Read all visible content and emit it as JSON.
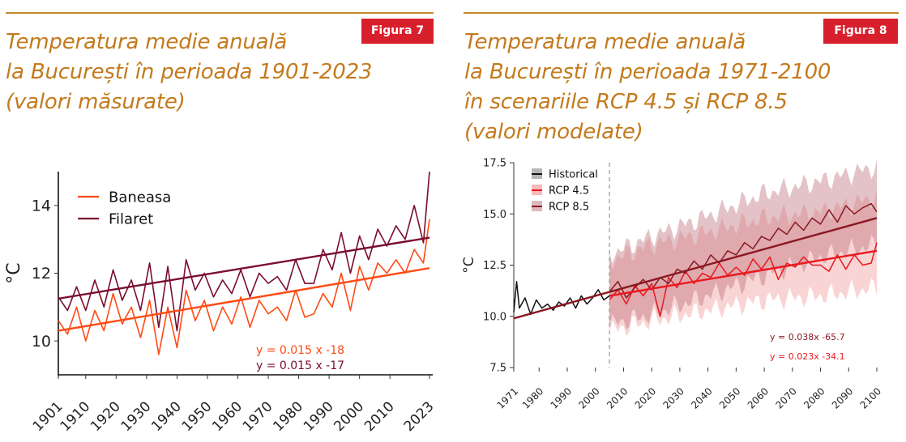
{
  "figure7": {
    "badge": "Figura 7",
    "title_lines": [
      "Temperatura medie anuală",
      "la București în perioada 1901-2023",
      "(valori măsurate)"
    ],
    "chart_data": {
      "type": "line",
      "ylabel": "°C",
      "xlim": [
        1901,
        2023
      ],
      "ylim": [
        9,
        15
      ],
      "x_ticks": [
        1901,
        1910,
        1920,
        1930,
        1940,
        1950,
        1960,
        1970,
        1980,
        1990,
        2000,
        2010,
        2023
      ],
      "y_ticks": [
        10,
        12,
        14
      ],
      "grid": false,
      "legend_position": "top-left",
      "series": [
        {
          "name": "Baneasa",
          "color": "#ff4a14",
          "x": [
            1901,
            1904,
            1907,
            1910,
            1913,
            1916,
            1919,
            1922,
            1925,
            1928,
            1931,
            1934,
            1937,
            1940,
            1943,
            1946,
            1949,
            1952,
            1955,
            1958,
            1961,
            1964,
            1967,
            1970,
            1973,
            1976,
            1979,
            1982,
            1985,
            1988,
            1991,
            1994,
            1997,
            2000,
            2003,
            2006,
            2009,
            2012,
            2015,
            2018,
            2021,
            2023
          ],
          "y": [
            10.6,
            10.2,
            11.0,
            10.0,
            10.9,
            10.3,
            11.4,
            10.5,
            11.0,
            10.1,
            11.2,
            9.6,
            11.0,
            9.8,
            11.5,
            10.6,
            11.2,
            10.3,
            11.0,
            10.5,
            11.3,
            10.4,
            11.2,
            10.8,
            11.0,
            10.6,
            11.5,
            10.7,
            10.8,
            11.4,
            11.0,
            12.0,
            10.9,
            12.2,
            11.5,
            12.3,
            12.0,
            12.4,
            12.0,
            12.7,
            12.3,
            13.6
          ]
        },
        {
          "name": "Filaret",
          "color": "#7a0c2e",
          "x": [
            1901,
            1904,
            1907,
            1910,
            1913,
            1916,
            1919,
            1922,
            1925,
            1928,
            1931,
            1934,
            1937,
            1940,
            1943,
            1946,
            1949,
            1952,
            1955,
            1958,
            1961,
            1964,
            1967,
            1970,
            1973,
            1976,
            1979,
            1982,
            1985,
            1988,
            1991,
            1994,
            1997,
            2000,
            2003,
            2006,
            2009,
            2012,
            2015,
            2018,
            2021,
            2023
          ],
          "y": [
            11.3,
            10.9,
            11.6,
            10.9,
            11.8,
            11.0,
            12.1,
            11.2,
            11.8,
            10.9,
            12.3,
            10.4,
            12.2,
            10.3,
            12.4,
            11.5,
            12.0,
            11.3,
            11.8,
            11.4,
            12.1,
            11.3,
            12.0,
            11.7,
            11.9,
            11.5,
            12.4,
            11.7,
            11.7,
            12.7,
            12.1,
            13.2,
            12.0,
            13.1,
            12.4,
            13.3,
            12.8,
            13.4,
            13.0,
            14.0,
            12.9,
            15.0
          ]
        }
      ],
      "trendlines": [
        {
          "series": "Baneasa",
          "equation": "y = 0.015 x -18",
          "x": [
            1901,
            2023
          ],
          "y": [
            10.3,
            12.15
          ],
          "color": "#ff4a14"
        },
        {
          "series": "Filaret",
          "equation": "y = 0.015 x -17",
          "x": [
            1901,
            2023
          ],
          "y": [
            11.25,
            13.05
          ],
          "color": "#7a0c2e"
        }
      ]
    }
  },
  "figure8": {
    "badge": "Figura 8",
    "title_lines": [
      "Temperatura medie anuală",
      "la București în perioada 1971-2100",
      "în scenariile RCP 4.5 și RCP 8.5",
      "(valori modelate)"
    ],
    "chart_data": {
      "type": "line",
      "ylabel": "°C",
      "xlim": [
        1971,
        2100
      ],
      "ylim": [
        7.5,
        17.5
      ],
      "x_ticks": [
        1971,
        1980,
        1990,
        2000,
        2010,
        2020,
        2030,
        2040,
        2050,
        2060,
        2070,
        2080,
        2090,
        2100
      ],
      "y_ticks": [
        7.5,
        10.0,
        12.5,
        15.0,
        17.5
      ],
      "grid": false,
      "legend_position": "top-left",
      "reference_line_x": 2005,
      "series": [
        {
          "name": "Historical",
          "color": "#111111",
          "x": [
            1971,
            1972,
            1973,
            1975,
            1977,
            1979,
            1981,
            1983,
            1985,
            1987,
            1989,
            1991,
            1993,
            1995,
            1997,
            1999,
            2001,
            2003,
            2005
          ],
          "y": [
            10.2,
            11.7,
            10.4,
            10.9,
            10.1,
            10.8,
            10.4,
            10.6,
            10.3,
            10.7,
            10.5,
            10.9,
            10.4,
            11.0,
            10.6,
            10.9,
            11.3,
            10.8,
            11.0
          ]
        },
        {
          "name": "RCP 4.5",
          "color": "#e8191f",
          "x": [
            2005,
            2008,
            2011,
            2014,
            2017,
            2020,
            2023,
            2026,
            2029,
            2032,
            2035,
            2038,
            2041,
            2044,
            2047,
            2050,
            2053,
            2056,
            2059,
            2062,
            2065,
            2068,
            2071,
            2074,
            2077,
            2080,
            2083,
            2086,
            2089,
            2092,
            2095,
            2098,
            2100
          ],
          "y": [
            10.8,
            11.3,
            10.6,
            11.5,
            11.0,
            11.6,
            10.0,
            11.9,
            11.4,
            12.2,
            11.6,
            12.1,
            11.9,
            12.6,
            12.0,
            12.4,
            12.0,
            12.8,
            12.3,
            12.9,
            11.8,
            12.6,
            12.4,
            12.9,
            12.5,
            12.5,
            12.2,
            13.0,
            12.3,
            13.0,
            12.5,
            12.6,
            13.6
          ]
        },
        {
          "name": "RCP 8.5",
          "color": "#8a1822",
          "x": [
            2005,
            2008,
            2011,
            2014,
            2017,
            2020,
            2023,
            2026,
            2029,
            2032,
            2035,
            2038,
            2041,
            2044,
            2047,
            2050,
            2053,
            2056,
            2059,
            2062,
            2065,
            2068,
            2071,
            2074,
            2077,
            2080,
            2083,
            2086,
            2089,
            2092,
            2095,
            2098,
            2100
          ],
          "y": [
            11.2,
            11.7,
            10.9,
            11.4,
            11.8,
            11.3,
            11.9,
            11.6,
            12.3,
            12.1,
            12.7,
            12.3,
            13.0,
            12.6,
            13.2,
            13.0,
            13.6,
            13.3,
            13.9,
            13.7,
            14.3,
            14.0,
            14.6,
            14.2,
            14.8,
            14.5,
            15.2,
            14.6,
            15.4,
            15.0,
            15.3,
            15.5,
            15.1
          ]
        }
      ],
      "bands": [
        {
          "series": "RCP 4.5",
          "color": "#f2a0a0",
          "opacity": 0.45,
          "x": [
            2005,
            2020,
            2040,
            2060,
            2080,
            2100
          ],
          "lower": [
            9.3,
            9.8,
            10.3,
            10.8,
            11.0,
            11.4
          ],
          "upper": [
            12.7,
            13.5,
            14.1,
            14.8,
            15.1,
            15.8
          ]
        },
        {
          "series": "RCP 8.5",
          "color": "#b86a72",
          "opacity": 0.4,
          "x": [
            2005,
            2020,
            2040,
            2060,
            2080,
            2100
          ],
          "lower": [
            9.6,
            10.1,
            11.0,
            12.0,
            12.9,
            13.5
          ],
          "upper": [
            13.0,
            13.9,
            14.9,
            16.0,
            16.6,
            17.3
          ]
        }
      ],
      "trendlines": [
        {
          "series": "RCP 8.5",
          "equation": "y = 0.038x -65.7",
          "x": [
            1971,
            2100
          ],
          "y": [
            9.9,
            14.8
          ],
          "color": "#8a1822"
        },
        {
          "series": "RCP 4.5",
          "equation": "y = 0.023x -34.1",
          "x": [
            2005,
            2100
          ],
          "y": [
            11.0,
            13.2
          ],
          "color": "#e8191f"
        }
      ]
    }
  }
}
